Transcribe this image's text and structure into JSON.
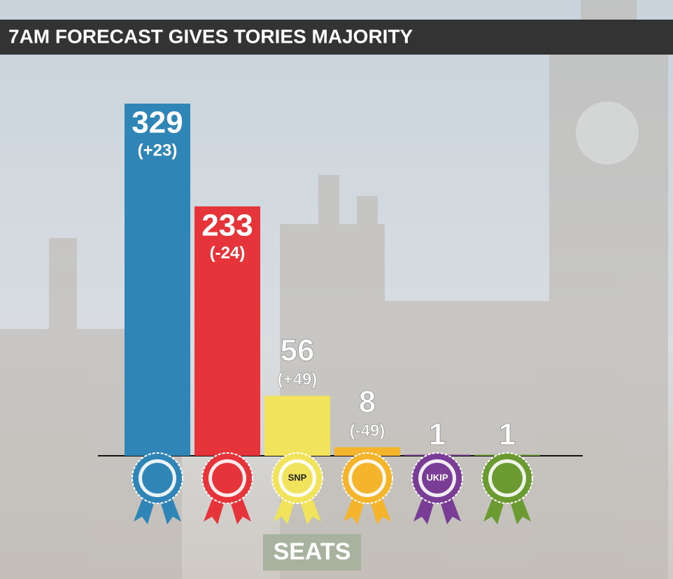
{
  "chart_data": {
    "type": "bar",
    "title": "7AM FORECAST GIVES TORIES MAJORITY",
    "x_label": "SEATS",
    "categories": [
      null,
      null,
      "SNP",
      null,
      "UKIP",
      null
    ],
    "values": [
      329,
      233,
      56,
      8,
      1,
      1
    ],
    "change_labels": [
      "(+23)",
      "(-24)",
      "(+49)",
      "(-49)",
      null,
      null
    ],
    "colors": [
      "#2f86b6",
      "#e5353b",
      "#f1e35c",
      "#f4b42c",
      "#7a3d96",
      "#6b9a31"
    ]
  }
}
